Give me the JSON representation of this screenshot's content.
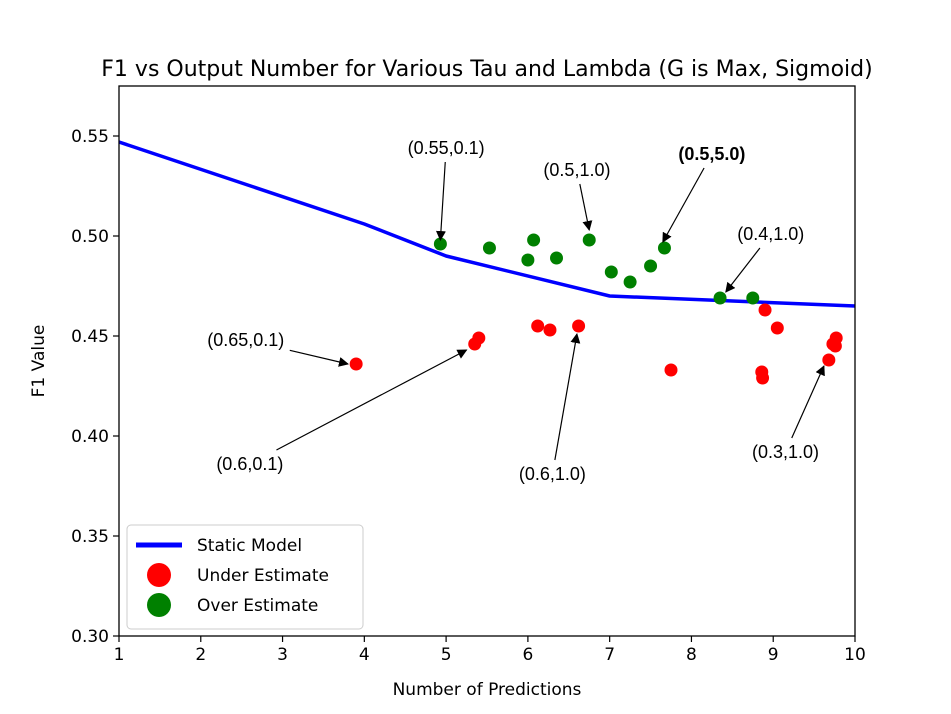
{
  "chart_data": {
    "type": "scatter",
    "title": "F1 vs Output Number for Various Tau and Lambda (G is Max, Sigmoid)",
    "xlabel": "Number of Predictions",
    "ylabel": "F1 Value",
    "xlim": [
      1,
      10
    ],
    "ylim": [
      0.3,
      0.575
    ],
    "xticks": [
      "1",
      "2",
      "3",
      "4",
      "5",
      "6",
      "7",
      "8",
      "9",
      "10"
    ],
    "yticks": [
      "0.30",
      "0.35",
      "0.40",
      "0.45",
      "0.50",
      "0.55"
    ],
    "grid": false,
    "legend_position": "bottom-left",
    "colors": {
      "static": "#0000ff",
      "under": "#ff0000",
      "over": "#008000"
    },
    "series": [
      {
        "name": "Static Model",
        "kind": "line",
        "x": [
          1,
          4,
          5,
          7,
          10
        ],
        "y": [
          0.547,
          0.506,
          0.49,
          0.47,
          0.465
        ]
      },
      {
        "name": "Under Estimate",
        "kind": "scatter",
        "x": [
          3.9,
          5.35,
          5.4,
          6.12,
          6.27,
          6.62,
          7.75,
          8.86,
          8.87,
          8.9,
          9.05,
          9.68,
          9.73,
          9.76,
          9.77
        ],
        "y": [
          0.436,
          0.446,
          0.449,
          0.455,
          0.453,
          0.455,
          0.433,
          0.432,
          0.429,
          0.463,
          0.454,
          0.438,
          0.446,
          0.445,
          0.449
        ]
      },
      {
        "name": "Over Estimate",
        "kind": "scatter",
        "x": [
          4.93,
          5.53,
          6.0,
          6.07,
          6.35,
          6.75,
          7.02,
          7.25,
          7.5,
          7.67,
          8.35,
          8.75
        ],
        "y": [
          0.496,
          0.494,
          0.488,
          0.498,
          0.489,
          0.498,
          0.482,
          0.477,
          0.485,
          0.494,
          0.469,
          0.469
        ]
      }
    ],
    "annotations": [
      {
        "text": "(0.55,0.1)",
        "bold": false,
        "text_at": [
          5.0,
          0.544
        ],
        "point": [
          4.93,
          0.498
        ]
      },
      {
        "text": "(0.5,1.0)",
        "bold": false,
        "text_at": [
          6.6,
          0.533
        ],
        "point": [
          6.75,
          0.503
        ]
      },
      {
        "text": "(0.5,5.0)",
        "bold": true,
        "text_at": [
          8.25,
          0.541
        ],
        "point": [
          7.65,
          0.497
        ]
      },
      {
        "text": "(0.4,1.0)",
        "bold": false,
        "text_at": [
          8.97,
          0.501
        ],
        "point": [
          8.42,
          0.472
        ]
      },
      {
        "text": "(0.65,0.1)",
        "bold": false,
        "text_at": [
          2.55,
          0.448
        ],
        "point": [
          3.8,
          0.436
        ]
      },
      {
        "text": "(0.6,0.1)",
        "bold": false,
        "text_at": [
          2.6,
          0.386
        ],
        "point": [
          5.25,
          0.443
        ]
      },
      {
        "text": "(0.6,1.0)",
        "bold": false,
        "text_at": [
          6.3,
          0.381
        ],
        "point": [
          6.6,
          0.451
        ]
      },
      {
        "text": "(0.3,1.0)",
        "bold": false,
        "text_at": [
          9.15,
          0.392
        ],
        "point": [
          9.62,
          0.435
        ]
      }
    ]
  }
}
